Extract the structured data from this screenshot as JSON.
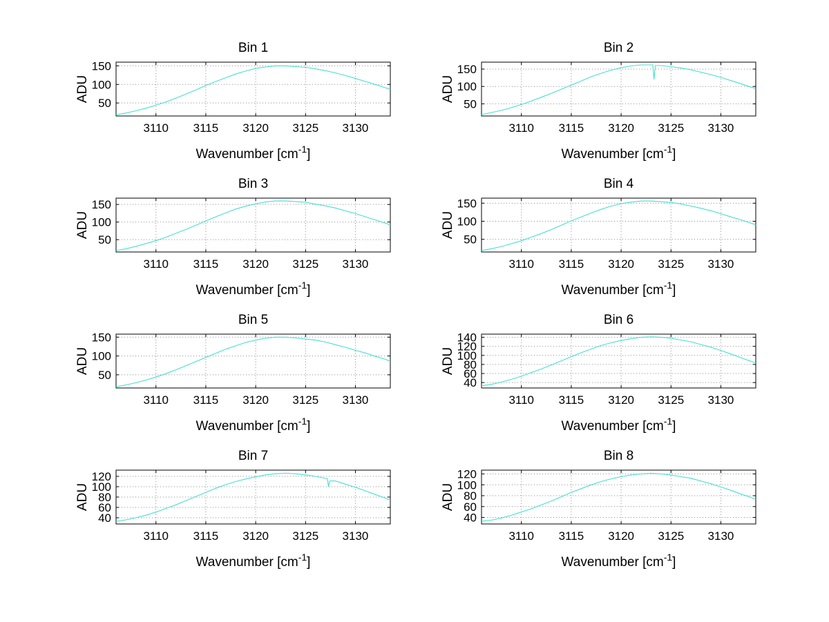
{
  "figure": {
    "background": "#ffffff"
  },
  "chart_data": {
    "type": "line",
    "layout": {
      "rows": 4,
      "cols": 2,
      "grid": true,
      "legend": "none"
    },
    "y_label": "ADU",
    "x_label_base": "Wavenumber [cm",
    "x_label_sup": "-1",
    "x_label_end": "]",
    "line_color": "#45DFD0",
    "grid_color": "#8c8c8c",
    "axis_color": "#000000",
    "xlim": [
      3106,
      3133.5
    ],
    "x_ticks": [
      3110,
      3115,
      3120,
      3125,
      3130
    ],
    "x": [
      3106,
      3107,
      3108,
      3109,
      3110,
      3111,
      3112,
      3113,
      3114,
      3115,
      3116,
      3117,
      3118,
      3119,
      3120,
      3121,
      3122,
      3123,
      3124,
      3125,
      3126,
      3127,
      3128,
      3129,
      3130,
      3131,
      3132,
      3133,
      3133.5
    ],
    "series": [
      {
        "name": "Bin 1",
        "ylim": [
          15,
          160
        ],
        "y_ticks": [
          50,
          100,
          150
        ],
        "values": [
          18,
          23,
          29,
          36,
          44,
          53,
          63,
          74,
          85,
          97,
          108,
          118,
          128,
          136,
          143,
          147,
          150,
          150,
          148,
          146,
          142,
          137,
          131,
          124,
          116,
          108,
          100,
          91,
          87
        ]
      },
      {
        "name": "Bin 2",
        "ylim": [
          15,
          170
        ],
        "y_ticks": [
          50,
          100,
          150
        ],
        "values": [
          19,
          25,
          31,
          39,
          48,
          58,
          69,
          80,
          92,
          104,
          116,
          128,
          138,
          147,
          154,
          159,
          162,
          162,
          160,
          157,
          153,
          148,
          141,
          134,
          126,
          117,
          108,
          98,
          94
        ],
        "spike": {
          "x": 3123.3,
          "y": 120
        }
      },
      {
        "name": "Bin 3",
        "ylim": [
          15,
          168
        ],
        "y_ticks": [
          50,
          100,
          150
        ],
        "values": [
          19,
          24,
          31,
          39,
          47,
          57,
          68,
          79,
          91,
          103,
          115,
          126,
          137,
          145,
          152,
          157,
          160,
          160,
          158,
          156,
          151,
          146,
          140,
          132,
          124,
          115,
          106,
          97,
          92
        ]
      },
      {
        "name": "Bin 4",
        "ylim": [
          15,
          164
        ],
        "y_ticks": [
          50,
          100,
          150
        ],
        "values": [
          19,
          24,
          30,
          38,
          46,
          56,
          66,
          77,
          89,
          101,
          112,
          123,
          133,
          142,
          149,
          153,
          156,
          156,
          154,
          152,
          148,
          142,
          136,
          129,
          121,
          112,
          104,
          95,
          90
        ]
      },
      {
        "name": "Bin 5",
        "ylim": [
          15,
          158
        ],
        "y_ticks": [
          50,
          100,
          150
        ],
        "values": [
          18,
          23,
          29,
          36,
          44,
          53,
          63,
          74,
          85,
          96,
          107,
          118,
          127,
          136,
          142,
          147,
          150,
          150,
          148,
          145,
          142,
          137,
          130,
          123,
          115,
          108,
          99,
          91,
          86
        ]
      },
      {
        "name": "Bin 6",
        "ylim": [
          28,
          147
        ],
        "y_ticks": [
          40,
          60,
          80,
          100,
          120,
          140
        ],
        "values": [
          33,
          36,
          41,
          47,
          54,
          62,
          70,
          79,
          88,
          97,
          106,
          114,
          122,
          128,
          133,
          137,
          140,
          141,
          140,
          138,
          134,
          130,
          124,
          118,
          111,
          103,
          95,
          87,
          83
        ]
      },
      {
        "name": "Bin 7",
        "ylim": [
          28,
          132
        ],
        "y_ticks": [
          40,
          60,
          80,
          100,
          120
        ],
        "values": [
          33,
          36,
          40,
          45,
          51,
          58,
          65,
          73,
          81,
          89,
          97,
          104,
          110,
          115,
          119,
          123,
          125,
          126,
          125,
          123,
          120,
          116,
          111,
          105,
          99,
          92,
          85,
          78,
          74
        ],
        "spike": {
          "x": 3127.3,
          "y": 100
        }
      },
      {
        "name": "Bin 8",
        "ylim": [
          28,
          127
        ],
        "y_ticks": [
          40,
          60,
          80,
          100,
          120
        ],
        "values": [
          33,
          35,
          39,
          44,
          50,
          56,
          63,
          70,
          78,
          86,
          93,
          100,
          106,
          111,
          115,
          118,
          120,
          121,
          120,
          118,
          115,
          112,
          107,
          102,
          96,
          90,
          83,
          77,
          73
        ]
      }
    ]
  }
}
